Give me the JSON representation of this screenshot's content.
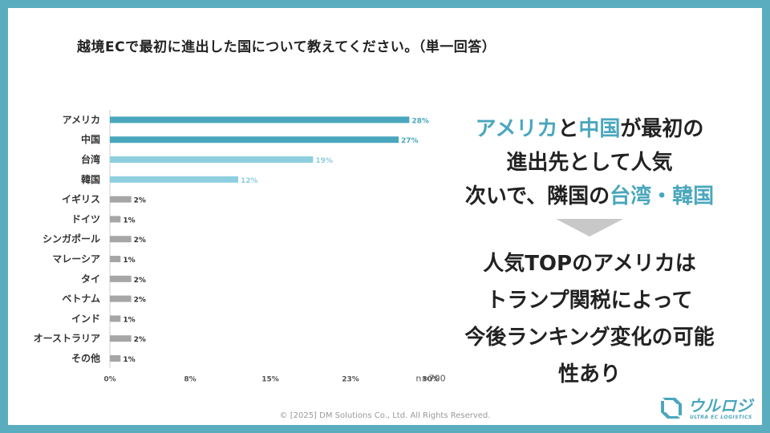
{
  "title": "越境ECで最初に進出した国について教えてください。（単一回答）",
  "colors": {
    "primary": "#4aa7bd",
    "light": "#8ecfdf",
    "gray": "#a6a6a6",
    "frame": "#5aacbf"
  },
  "chart_data": {
    "type": "bar",
    "orientation": "horizontal",
    "categories": [
      "アメリカ",
      "中国",
      "台湾",
      "韓国",
      "イギリス",
      "ドイツ",
      "シンガポール",
      "マレーシア",
      "タイ",
      "ベトナム",
      "インド",
      "オーストラリア",
      "その他"
    ],
    "values": [
      28,
      27,
      19,
      12,
      2,
      1,
      2,
      1,
      2,
      2,
      1,
      2,
      1
    ],
    "value_labels": [
      "28%",
      "27%",
      "19%",
      "12%",
      "2%",
      "1%",
      "2%",
      "1%",
      "2%",
      "2%",
      "1%",
      "2%",
      "1%"
    ],
    "bar_colors": [
      "primary",
      "primary",
      "light",
      "light",
      "gray",
      "gray",
      "gray",
      "gray",
      "gray",
      "gray",
      "gray",
      "gray",
      "gray"
    ],
    "x_ticks": [
      "0%",
      "8%",
      "15%",
      "23%",
      "30%"
    ],
    "xlim": [
      0,
      30
    ],
    "sample_note": "n=700",
    "grid": false
  },
  "headline": {
    "line1": {
      "a": "アメリカ",
      "b": "と",
      "c": "中国",
      "d": "が最初の"
    },
    "line2": "進出先として人気",
    "line3": {
      "a": "次いで、隣国の",
      "b": "台湾・韓国"
    }
  },
  "sub": {
    "line1": "人気TOPのアメリカは",
    "line2": "トランプ関税によって",
    "line3": "今後ランキング変化の可能",
    "line4": "性あり"
  },
  "footer": "© [2025] DM Solutions Co., Ltd. All Rights Reserved.",
  "logo": {
    "name": "ウルロジ",
    "tagline": "ULTRA EC LOGISTICS"
  }
}
